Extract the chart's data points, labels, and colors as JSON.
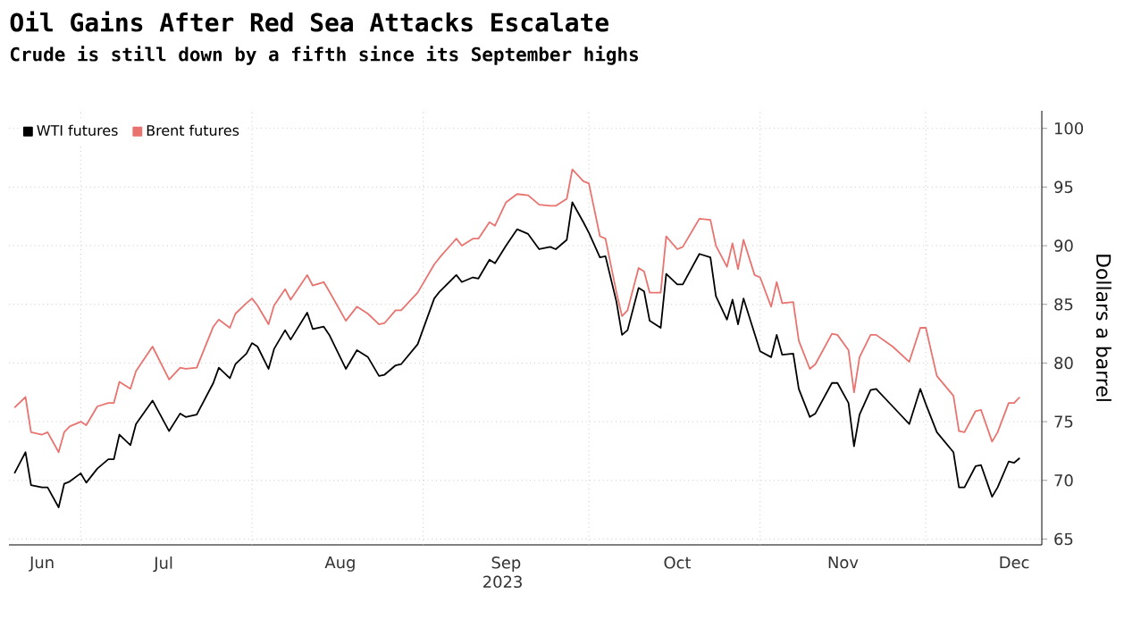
{
  "chart_data": {
    "type": "line",
    "title": "Oil Gains After Red Sea Attacks Escalate",
    "subtitle": "Crude is still down by a fifth since its September highs",
    "xlabel": "2023",
    "ylabel": "Dollars a barrel",
    "x": [
      "2023-06-19",
      "2023-06-21",
      "2023-06-22",
      "2023-06-24",
      "2023-06-25",
      "2023-06-27",
      "2023-06-28",
      "2023-06-29",
      "2023-07-01",
      "2023-07-02",
      "2023-07-04",
      "2023-07-06",
      "2023-07-07",
      "2023-07-08",
      "2023-07-10",
      "2023-07-11",
      "2023-07-14",
      "2023-07-17",
      "2023-07-19",
      "2023-07-20",
      "2023-07-22",
      "2023-07-25",
      "2023-07-26",
      "2023-07-28",
      "2023-07-29",
      "2023-07-31",
      "2023-08-01",
      "2023-08-02",
      "2023-08-04",
      "2023-08-05",
      "2023-08-07",
      "2023-08-08",
      "2023-08-11",
      "2023-08-12",
      "2023-08-14",
      "2023-08-15",
      "2023-08-18",
      "2023-08-20",
      "2023-08-22",
      "2023-08-24",
      "2023-08-25",
      "2023-08-27",
      "2023-08-28",
      "2023-08-31",
      "2023-09-03",
      "2023-09-04",
      "2023-09-07",
      "2023-09-08",
      "2023-09-10",
      "2023-09-11",
      "2023-09-13",
      "2023-09-14",
      "2023-09-16",
      "2023-09-18",
      "2023-09-20",
      "2023-09-22",
      "2023-09-24",
      "2023-09-25",
      "2023-09-27",
      "2023-09-28",
      "2023-09-30",
      "2023-10-01",
      "2023-10-03",
      "2023-10-04",
      "2023-10-06",
      "2023-10-07",
      "2023-10-08",
      "2023-10-10",
      "2023-10-11",
      "2023-10-12",
      "2023-10-14",
      "2023-10-15",
      "2023-10-17",
      "2023-10-18",
      "2023-10-21",
      "2023-10-23",
      "2023-10-24",
      "2023-10-26",
      "2023-10-27",
      "2023-10-28",
      "2023-10-29",
      "2023-10-31",
      "2023-11-01",
      "2023-11-03",
      "2023-11-04",
      "2023-11-05",
      "2023-11-07",
      "2023-11-08",
      "2023-11-10",
      "2023-11-11",
      "2023-11-14",
      "2023-11-15",
      "2023-11-17",
      "2023-11-18",
      "2023-11-19",
      "2023-11-21",
      "2023-11-22",
      "2023-11-25",
      "2023-11-28",
      "2023-11-30",
      "2023-12-01",
      "2023-12-03",
      "2023-12-06",
      "2023-12-07",
      "2023-12-08",
      "2023-12-10",
      "2023-12-11",
      "2023-12-13",
      "2023-12-14",
      "2023-12-16",
      "2023-12-17",
      "2023-12-18"
    ],
    "series": [
      {
        "name": "WTI futures",
        "color": "#000000",
        "values": [
          70.6,
          72.4,
          69.6,
          69.4,
          69.4,
          67.7,
          69.7,
          69.9,
          70.6,
          69.8,
          71.0,
          71.8,
          71.8,
          73.9,
          73.0,
          74.8,
          76.8,
          74.2,
          75.7,
          75.4,
          75.6,
          78.3,
          79.6,
          78.7,
          79.9,
          80.8,
          81.7,
          81.4,
          79.5,
          81.2,
          82.8,
          82.0,
          84.3,
          82.9,
          83.1,
          82.4,
          79.5,
          81.1,
          80.5,
          78.9,
          79.0,
          79.8,
          79.9,
          81.6,
          85.5,
          86.1,
          87.5,
          86.9,
          87.3,
          87.2,
          88.8,
          88.5,
          90.0,
          91.4,
          91.0,
          89.7,
          89.9,
          89.7,
          90.5,
          93.7,
          92.0,
          91.1,
          89.0,
          89.1,
          85.2,
          82.4,
          82.8,
          86.4,
          86.1,
          83.6,
          83.0,
          87.6,
          86.7,
          86.7,
          89.3,
          89.0,
          85.7,
          83.7,
          85.4,
          83.3,
          85.5,
          82.5,
          81.0,
          80.5,
          82.4,
          80.7,
          80.8,
          77.8,
          75.4,
          75.7,
          78.3,
          78.3,
          76.6,
          72.9,
          75.6,
          77.7,
          77.8,
          76.3,
          74.8,
          77.8,
          76.5,
          74.1,
          72.4,
          69.4,
          69.4,
          71.2,
          71.3,
          68.6,
          69.4,
          71.6,
          71.5,
          71.9
        ]
      },
      {
        "name": "Brent futures",
        "color": "#e8736f",
        "values": [
          76.2,
          77.1,
          74.1,
          73.9,
          74.1,
          72.4,
          74.1,
          74.6,
          75.0,
          74.7,
          76.3,
          76.6,
          76.6,
          78.4,
          77.8,
          79.3,
          81.4,
          78.6,
          79.6,
          79.5,
          79.6,
          83.1,
          83.7,
          83.0,
          84.2,
          85.1,
          85.5,
          84.9,
          83.3,
          84.9,
          86.3,
          85.4,
          87.5,
          86.6,
          86.9,
          86.1,
          83.6,
          84.8,
          84.2,
          83.3,
          83.4,
          84.5,
          84.5,
          86.0,
          88.4,
          89.0,
          90.6,
          90.0,
          90.6,
          90.6,
          92.0,
          91.7,
          93.7,
          94.4,
          94.3,
          93.5,
          93.4,
          93.4,
          94.0,
          96.5,
          95.5,
          95.3,
          90.8,
          90.6,
          86.0,
          84.0,
          84.5,
          88.1,
          87.8,
          86.0,
          86.0,
          90.8,
          89.7,
          89.9,
          92.3,
          92.2,
          90.0,
          88.2,
          90.2,
          88.0,
          90.5,
          87.5,
          87.3,
          84.8,
          86.9,
          85.1,
          85.2,
          81.9,
          79.5,
          79.9,
          82.5,
          82.4,
          81.1,
          77.5,
          80.5,
          82.4,
          82.4,
          81.4,
          80.1,
          83.0,
          83.0,
          78.9,
          77.2,
          74.2,
          74.1,
          75.9,
          76.0,
          73.3,
          74.1,
          76.6,
          76.6,
          77.1
        ]
      }
    ],
    "xlim": [
      "2023-06-18",
      "2023-12-22"
    ],
    "xticks": [
      {
        "value": "2023-06-24",
        "label": "Jun"
      },
      {
        "value": "2023-07-01",
        "label": null
      },
      {
        "value": "2023-07-16",
        "label": "Jul"
      },
      {
        "value": "2023-08-01",
        "label": null
      },
      {
        "value": "2023-08-17",
        "label": "Aug"
      },
      {
        "value": "2023-09-01",
        "label": null
      },
      {
        "value": "2023-09-16",
        "label": "Sep"
      },
      {
        "value": "2023-10-01",
        "label": null
      },
      {
        "value": "2023-10-17",
        "label": "Oct"
      },
      {
        "value": "2023-11-01",
        "label": null
      },
      {
        "value": "2023-11-16",
        "label": "Nov"
      },
      {
        "value": "2023-12-01",
        "label": null
      },
      {
        "value": "2023-12-17",
        "label": "Dec"
      }
    ],
    "ylim": [
      64.5,
      101.5
    ],
    "yticks": [
      65,
      70,
      75,
      80,
      85,
      90,
      95,
      100
    ],
    "grid": true,
    "legend": "top left"
  }
}
